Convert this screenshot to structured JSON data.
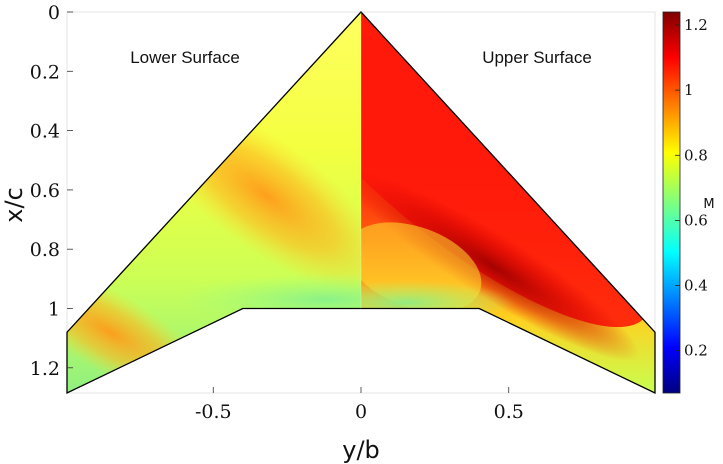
{
  "chart_data": {
    "type": "heatmap",
    "xlabel": "y/b",
    "ylabel": "x/c",
    "colorbar_label": "M",
    "xlim": [
      -0.995,
      0.995
    ],
    "ylim": [
      1.285,
      0
    ],
    "y_reversed": true,
    "x_ticks": [
      -0.5,
      0,
      0.5
    ],
    "x_tick_labels": [
      "-0.5",
      "0",
      "0.5"
    ],
    "y_ticks": [
      0,
      0.2,
      0.4,
      0.6,
      0.8,
      1,
      1.2
    ],
    "y_tick_labels": [
      "0",
      "0.2",
      "0.4",
      "0.6",
      "0.8",
      "1",
      "1.2"
    ],
    "colorbar": {
      "range": [
        0.07,
        1.24
      ],
      "ticks": [
        0.2,
        0.4,
        0.6,
        0.8,
        1,
        1.2
      ],
      "tick_labels": [
        "0.2",
        "0.4",
        "0.6",
        "0.8",
        "1",
        "1.2"
      ],
      "colormap": "jet"
    },
    "annotations": [
      "Lower Surface",
      "Upper Surface"
    ],
    "planform": {
      "apex": [
        0,
        0
      ],
      "trailing_edge_center": [
        [
          -0.4,
          1.0
        ],
        [
          0.4,
          1.0
        ]
      ],
      "tips": [
        [
          -0.995,
          1.08
        ],
        [
          -0.995,
          1.285
        ],
        [
          0.995,
          1.08
        ],
        [
          0.995,
          1.285
        ]
      ]
    },
    "lower_surface_mach": {
      "description_points": [
        {
          "x": -0.3,
          "y": 0.55,
          "M": 0.98
        },
        {
          "x": -0.6,
          "y": 0.9,
          "M": 0.96
        },
        {
          "x": -0.9,
          "y": 1.15,
          "M": 0.98
        },
        {
          "x": -0.1,
          "y": 0.9,
          "M": 0.8
        },
        {
          "x": 0.0,
          "y": 0.97,
          "M": 0.7
        }
      ]
    },
    "upper_surface_mach": {
      "description_points": [
        {
          "x": 0.05,
          "y": 0.2,
          "M": 1.15
        },
        {
          "x": 0.2,
          "y": 0.5,
          "M": 1.15
        },
        {
          "x": 0.35,
          "y": 0.75,
          "M": 1.22
        },
        {
          "x": 0.7,
          "y": 1.05,
          "M": 1.22
        },
        {
          "x": 0.1,
          "y": 0.85,
          "M": 0.85
        },
        {
          "x": 0.5,
          "y": 1.1,
          "M": 0.85
        }
      ]
    }
  }
}
